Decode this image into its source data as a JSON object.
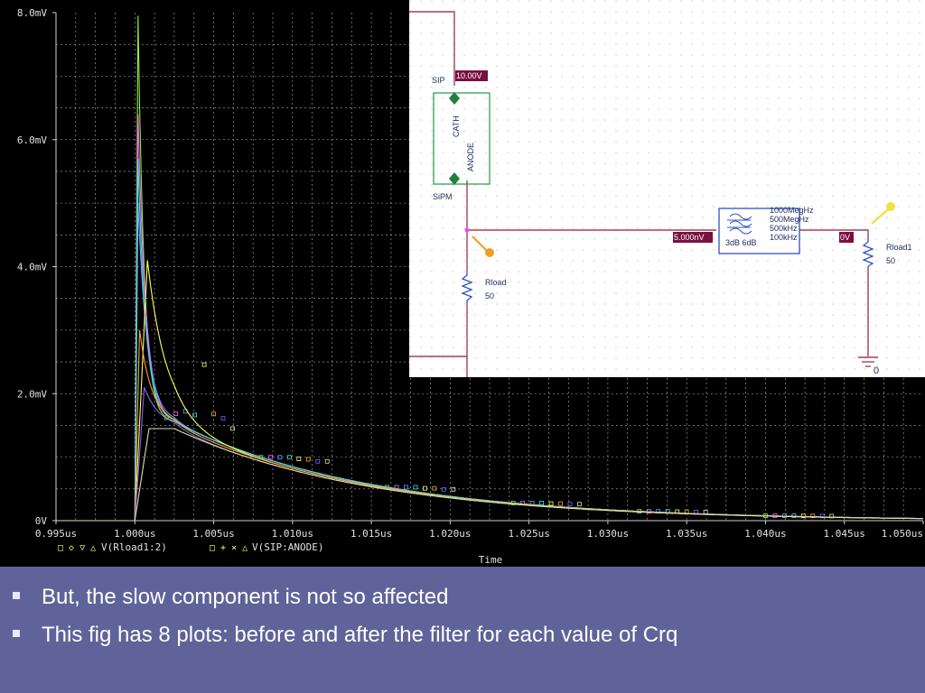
{
  "chart_data": {
    "type": "line",
    "y_ticks": [
      "8.0mV",
      "6.0mV",
      "4.0mV",
      "2.0mV",
      "0V"
    ],
    "y_tick_values": [
      8.0,
      6.0,
      4.0,
      2.0,
      0
    ],
    "x_ticks": [
      "0.995us",
      "1.000us",
      "1.005us",
      "1.010us",
      "1.015us",
      "1.020us",
      "1.025us",
      "1.030us",
      "1.035us",
      "1.040us",
      "1.045us",
      "1.050us"
    ],
    "x_tick_values": [
      0.995,
      1.0,
      1.005,
      1.01,
      1.015,
      1.02,
      1.025,
      1.03,
      1.035,
      1.04,
      1.045,
      1.05
    ],
    "xlim": [
      0.995,
      1.05
    ],
    "ylim": [
      0,
      8.0
    ],
    "xlabel": "Time",
    "grid": true,
    "legend": {
      "markers": [
        "□",
        "◇",
        "▽",
        "△"
      ],
      "group1_label": "V(Rload1:2)",
      "group2_markers": [
        "□",
        "+",
        "×",
        "△"
      ],
      "group2_label": "V(SIP:ANODE)"
    },
    "series": [
      {
        "color": "#90ee40",
        "peak": 7.95,
        "rise": 0.0002,
        "fast_tau": 0.0004,
        "slow_amp": 1.55,
        "slow_tau": 0.0125
      },
      {
        "color": "#ff60ff",
        "peak": 6.4,
        "rise": 0.0002,
        "fast_tau": 0.0005,
        "slow_amp": 1.55,
        "slow_tau": 0.0125
      },
      {
        "color": "#60a0ff",
        "peak": 5.0,
        "rise": 0.0002,
        "fast_tau": 0.0006,
        "slow_amp": 1.55,
        "slow_tau": 0.0125
      },
      {
        "color": "#40e0e0",
        "peak": 5.7,
        "rise": 0.0002,
        "fast_tau": 0.0005,
        "slow_amp": 1.55,
        "slow_tau": 0.0125
      },
      {
        "color": "#ffff60",
        "peak": 4.1,
        "rise": 0.0008,
        "fast_tau": 0.0012,
        "slow_amp": 1.5,
        "slow_tau": 0.0125
      },
      {
        "color": "#ffa030",
        "peak": 3.0,
        "rise": 0.0003,
        "fast_tau": 0.0008,
        "slow_amp": 1.5,
        "slow_tau": 0.0125
      },
      {
        "color": "#8060ff",
        "peak": 2.1,
        "rise": 0.0006,
        "fast_tau": 0.001,
        "slow_amp": 1.45,
        "slow_tau": 0.0125
      },
      {
        "color": "#e0e0a0",
        "peak": 1.45,
        "rise": 0.0009,
        "fast_tau": 0.0015,
        "slow_amp": 1.45,
        "slow_tau": 0.0125
      }
    ]
  },
  "schematic": {
    "sip_label": "SIP",
    "sip_voltage": "10.00V",
    "cath_label": "CATH",
    "anode_label": "ANODE",
    "sipm_label": "SiPM",
    "node_voltage": "5.000nV",
    "out_voltage": "0V",
    "filter_lines": [
      "1000MegHz",
      "500MegHz",
      "500kHz",
      "100kHz"
    ],
    "filter_db": "3dB 6dB",
    "rload_label": "Rload",
    "rload_value": "50",
    "rload1_label": "Rload1",
    "rload1_value": "50",
    "ground_label": "0"
  },
  "slide": {
    "bullets": [
      "But, the slow component is not so affected",
      "This fig has 8 plots: before and after the filter for each value of Crq"
    ]
  }
}
